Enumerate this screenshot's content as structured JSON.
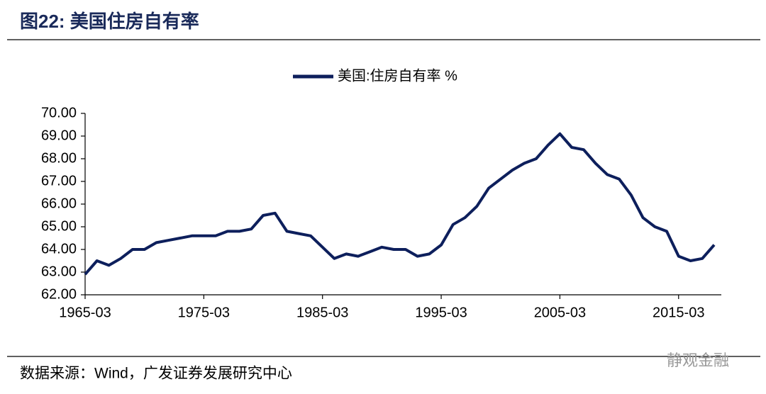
{
  "chart_data": {
    "type": "line",
    "title": "图22:  美国住房自有率",
    "source": "数据来源：Wind，广发证券发展研究中心",
    "watermark": "静观金融",
    "x": [
      "1965-03",
      "1966-03",
      "1967-03",
      "1968-03",
      "1969-03",
      "1970-03",
      "1971-03",
      "1972-03",
      "1973-03",
      "1974-03",
      "1975-03",
      "1976-03",
      "1977-03",
      "1978-03",
      "1979-03",
      "1980-03",
      "1981-03",
      "1982-03",
      "1983-03",
      "1984-03",
      "1985-03",
      "1986-03",
      "1987-03",
      "1988-03",
      "1989-03",
      "1990-03",
      "1991-03",
      "1992-03",
      "1993-03",
      "1994-03",
      "1995-03",
      "1996-03",
      "1997-03",
      "1998-03",
      "1999-03",
      "2000-03",
      "2001-03",
      "2002-03",
      "2003-03",
      "2004-03",
      "2005-03",
      "2006-03",
      "2007-03",
      "2008-03",
      "2009-03",
      "2010-03",
      "2011-03",
      "2012-03",
      "2013-03",
      "2014-03",
      "2015-03",
      "2016-03",
      "2017-03",
      "2018-03"
    ],
    "series": [
      {
        "name": "美国:住房自有率 %",
        "color": "#0d1f5c",
        "values": [
          62.9,
          63.5,
          63.3,
          63.6,
          64.0,
          64.0,
          64.3,
          64.4,
          64.5,
          64.6,
          64.6,
          64.6,
          64.8,
          64.8,
          64.9,
          65.5,
          65.6,
          64.8,
          64.7,
          64.6,
          64.1,
          63.6,
          63.8,
          63.7,
          63.9,
          64.1,
          64.0,
          64.0,
          63.7,
          63.8,
          64.2,
          65.1,
          65.4,
          65.9,
          66.7,
          67.1,
          67.5,
          67.8,
          68.0,
          68.6,
          69.1,
          68.5,
          68.4,
          67.8,
          67.3,
          67.1,
          66.4,
          65.4,
          65.0,
          64.8,
          63.7,
          63.5,
          63.6,
          64.2
        ]
      }
    ],
    "xticks": [
      "1965-03",
      "1975-03",
      "1985-03",
      "1995-03",
      "2005-03",
      "2015-03"
    ],
    "ylim": [
      62,
      70
    ],
    "yticks": [
      {
        "value": 62,
        "label": "62.00"
      },
      {
        "value": 63,
        "label": "63.00"
      },
      {
        "value": 64,
        "label": "64.00"
      },
      {
        "value": 65,
        "label": "65.00"
      },
      {
        "value": 66,
        "label": "66.00"
      },
      {
        "value": 67,
        "label": "67.00"
      },
      {
        "value": 68,
        "label": "68.00"
      },
      {
        "value": 69,
        "label": "69.00"
      },
      {
        "value": 70,
        "label": "70.00"
      }
    ]
  }
}
